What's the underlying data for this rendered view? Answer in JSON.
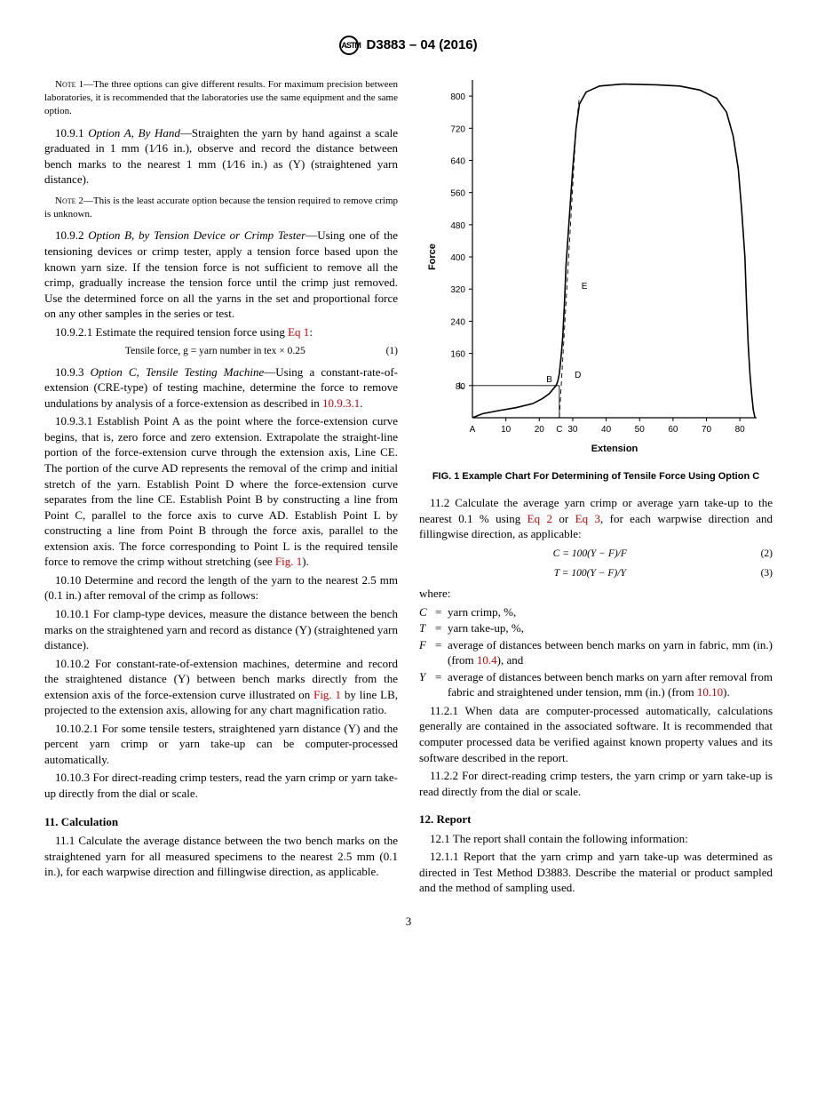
{
  "doc_id": "D3883 – 04 (2016)",
  "page_number": "3",
  "note1": {
    "label": "Note 1",
    "text": "—The three options can give different results. For maximum precision between laboratories, it is recommended that the laboratories use the same equipment and the same option."
  },
  "s10_9_1": {
    "num": "10.9.1",
    "title": "Option A, By Hand",
    "text": "—Straighten the yarn by hand against a scale graduated in 1 mm (1⁄16 in.), observe and record the distance between bench marks to the nearest 1 mm (1⁄16 in.) as (Y) (straightened yarn distance)."
  },
  "note2": {
    "label": "Note 2",
    "text": "—This is the least accurate option because the tension required to remove crimp is unknown."
  },
  "s10_9_2": {
    "num": "10.9.2",
    "title": "Option B, by Tension Device or Crimp Tester",
    "text": "—Using one of the tensioning devices or crimp tester, apply a tension force based upon the known yarn size. If the tension force is not sufficient to remove all the crimp, gradually increase the tension force until the crimp just removed. Use the determined force on all the yarns in the set and proportional force on any other samples in the series or test."
  },
  "s10_9_2_1": {
    "num": "10.9.2.1",
    "text": "Estimate the required tension force using ",
    "link": "Eq 1",
    "suffix": ":"
  },
  "eq1": {
    "text": "Tensile force, g = yarn number in tex × 0.25",
    "num": "(1)"
  },
  "s10_9_3": {
    "num": "10.9.3",
    "title": "Option C, Tensile Testing Machine",
    "text": "—Using a constant-rate-of-extension (CRE-type) of testing machine, determine the force to remove undulations by analysis of a force-extension as described in ",
    "link": "10.9.3.1",
    "suffix": "."
  },
  "s10_9_3_1": {
    "num": "10.9.3.1",
    "text1": "Establish Point A as the point where the force-extension curve begins, that is, zero force and zero extension. Extrapolate the straight-line portion of the force-extension curve through the extension axis, Line CE. The portion of the curve AD represents the removal of the crimp and initial stretch of the yarn. Establish Point D where the force-extension curve separates from the line CE. Establish Point B by constructing a line from Point C, parallel to the force axis to curve AD. Establish Point L by constructing a line from Point B through the force axis, parallel to the extension axis. The force corresponding to Point L is the required tensile force to remove the crimp without stretching (see ",
    "link": "Fig. 1",
    "suffix": ")."
  },
  "s10_10": {
    "num": "10.10",
    "text": "Determine and record the length of the yarn to the nearest 2.5 mm (0.1 in.) after removal of the crimp as follows:"
  },
  "s10_10_1": {
    "num": "10.10.1",
    "text": "For clamp-type devices, measure the distance between the bench marks on the straightened yarn and record as distance (Y) (straightened yarn distance)."
  },
  "s10_10_2": {
    "num": "10.10.2",
    "text1": "For constant-rate-of-extension machines, determine and record the straightened distance (Y) between bench marks directly from the extension axis of the force-extension curve illustrated on ",
    "link": "Fig. 1",
    "text2": " by line LB, projected to the extension axis, allowing for any chart magnification ratio."
  },
  "s10_10_2_1": {
    "num": "10.10.2.1",
    "text": "For some tensile testers, straightened yarn distance (Y) and the percent yarn crimp or yarn take-up can be computer-processed automatically."
  },
  "s10_10_3": {
    "num": "10.10.3",
    "text": "For direct-reading crimp testers, read the yarn crimp or yarn take-up directly from the dial or scale."
  },
  "s11": {
    "title": "11.  Calculation"
  },
  "s11_1": {
    "num": "11.1",
    "text": "Calculate the average distance between the two bench marks on the straightened yarn for all measured specimens to the nearest 2.5 mm (0.1 in.), for each warpwise direction and fillingwise direction, as applicable."
  },
  "fig1": {
    "caption": "FIG. 1 Example Chart For Determining of Tensile Force Using Option C",
    "ylabel": "Force",
    "xlabel": "Extension",
    "y_ticks": [
      80,
      160,
      240,
      320,
      400,
      480,
      560,
      640,
      720,
      800
    ],
    "x_ticks": [
      10,
      20,
      30,
      40,
      50,
      60,
      70,
      80
    ],
    "x_axis_label_A": "A",
    "points": {
      "L": "L",
      "B": "B",
      "C": "C",
      "D": "D",
      "E": "E"
    },
    "colors": {
      "line": "#000000",
      "bg": "#ffffff"
    },
    "axis_font_size": 10,
    "label_font_size": 11,
    "point_font_size": 10,
    "line_width_curve": 1.6,
    "line_width_axis": 1.2,
    "line_width_construct": 0.9
  },
  "s11_2": {
    "num": "11.2",
    "text1": "Calculate the average yarn crimp or average yarn take-up to the nearest 0.1 % using ",
    "link1": "Eq 2",
    "mid": " or ",
    "link2": "Eq 3",
    "text2": ", for each warpwise direction and fillingwise direction, as applicable:"
  },
  "eq2": {
    "text": "C = 100(Y − F)/F",
    "num": "(2)"
  },
  "eq3": {
    "text": "T = 100(Y − F)/Y",
    "num": "(3)"
  },
  "where_label": "where:",
  "where": [
    {
      "sym": "C",
      "def": "yarn crimp, %,"
    },
    {
      "sym": "T",
      "def": "yarn take-up, %,"
    },
    {
      "sym": "F",
      "def_pre": "average of distances between bench marks on yarn in fabric, mm (in.) (from ",
      "link": "10.4",
      "def_post": "), and"
    },
    {
      "sym": "Y",
      "def_pre": "average of distances between bench marks on yarn after removal from fabric and straightened under tension, mm (in.) (from ",
      "link": "10.10",
      "def_post": ")."
    }
  ],
  "s11_2_1": {
    "num": "11.2.1",
    "text": "When data are computer-processed automatically, calculations generally are contained in the associated software. It is recommended that computer processed data be verified against known property values and its software described in the report."
  },
  "s11_2_2": {
    "num": "11.2.2",
    "text": "For direct-reading crimp testers, the yarn crimp or yarn take-up is read directly from the dial or scale."
  },
  "s12": {
    "title": "12.  Report"
  },
  "s12_1": {
    "num": "12.1",
    "text": "The report shall contain the following information:"
  },
  "s12_1_1": {
    "num": "12.1.1",
    "text": "Report that the yarn crimp and yarn take-up was determined as directed in Test Method D3883. Describe the material or product sampled and the method of sampling used."
  }
}
